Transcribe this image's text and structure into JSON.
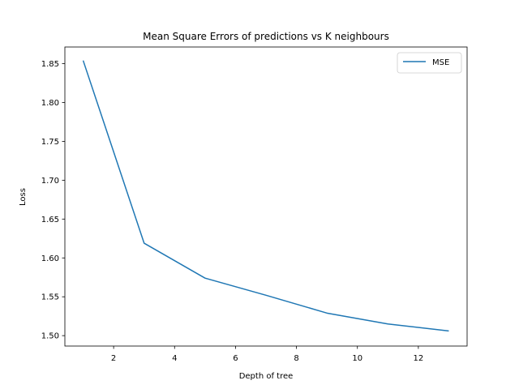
{
  "chart_data": {
    "type": "line",
    "title": "Mean Square Errors of predictions vs K neighbours",
    "xlabel": "Depth of tree",
    "ylabel": "Loss",
    "x": [
      1,
      3,
      5,
      7,
      9,
      11,
      13
    ],
    "series": [
      {
        "name": "MSE",
        "color": "#1f77b4",
        "values": [
          1.854,
          1.619,
          1.574,
          1.552,
          1.529,
          1.515,
          1.506
        ]
      }
    ],
    "xlim": [
      0.4,
      13.6
    ],
    "ylim": [
      1.4866,
      1.8714
    ],
    "xticks": [
      2,
      4,
      6,
      8,
      10,
      12
    ],
    "xtick_labels": [
      "2",
      "4",
      "6",
      "8",
      "10",
      "12"
    ],
    "yticks": [
      1.5,
      1.55,
      1.6,
      1.65,
      1.7,
      1.75,
      1.8,
      1.85
    ],
    "ytick_labels": [
      "1.50",
      "1.55",
      "1.60",
      "1.65",
      "1.70",
      "1.75",
      "1.80",
      "1.85"
    ],
    "grid": false,
    "legend_position": "top-right"
  }
}
